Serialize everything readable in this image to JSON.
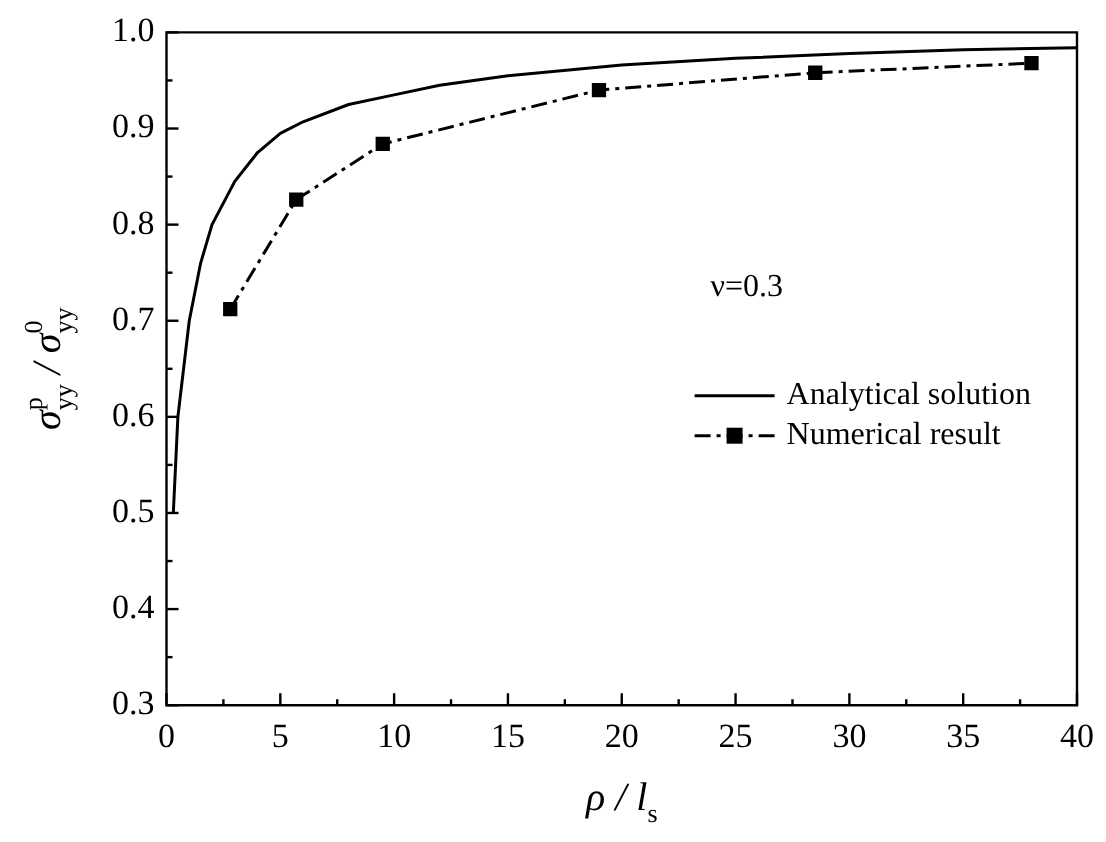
{
  "chart_data": {
    "type": "line",
    "xlabel": "ρ / l$_{s}$",
    "ylabel": "σ$^{p}$$_{yy}$ / σ$^{0}$$_{yy}$",
    "xlim": [
      0,
      40
    ],
    "xticks": [
      0,
      {
        "value": 2.5,
        "label": null
      },
      5,
      {
        "value": 7.5,
        "label": null
      },
      10,
      {
        "value": 12.5,
        "label": null
      },
      15,
      {
        "value": 17.5,
        "label": null
      },
      20,
      {
        "value": 22.5,
        "label": null
      },
      25,
      {
        "value": 27.5,
        "label": null
      },
      30,
      {
        "value": 32.5,
        "label": null
      },
      35,
      {
        "value": 37.5,
        "label": null
      },
      40
    ],
    "ylim": [
      0.3,
      1.0
    ],
    "yticks": [
      {
        "value": 0.3,
        "label": "0.3"
      },
      {
        "value": 0.35,
        "label": null
      },
      {
        "value": 0.4,
        "label": "0.4"
      },
      {
        "value": 0.45,
        "label": null
      },
      {
        "value": 0.5,
        "label": "0.5"
      },
      {
        "value": 0.55,
        "label": null
      },
      {
        "value": 0.6,
        "label": "0.6"
      },
      {
        "value": 0.65,
        "label": null
      },
      {
        "value": 0.7,
        "label": "0.7"
      },
      {
        "value": 0.75,
        "label": null
      },
      {
        "value": 0.8,
        "label": "0.8"
      },
      {
        "value": 0.85,
        "label": null
      },
      {
        "value": 0.9,
        "label": "0.9"
      },
      {
        "value": 0.95,
        "label": null
      },
      {
        "value": 1.0,
        "label": "1.0"
      }
    ],
    "grid": false,
    "legend": "right",
    "annotations": [
      "ν=0.3"
    ],
    "series": [
      {
        "name": "Analytical solution",
        "color": "#000000",
        "marker": "none",
        "line_style": "solid",
        "x": [
          0.3,
          0.5,
          1,
          1.5,
          2,
          3,
          4,
          5,
          6,
          8,
          10,
          12,
          15,
          20,
          25,
          30,
          35,
          40
        ],
        "values": [
          0.5,
          0.6,
          0.7,
          0.76,
          0.8,
          0.845,
          0.875,
          0.895,
          0.907,
          0.925,
          0.935,
          0.945,
          0.955,
          0.966,
          0.973,
          0.978,
          0.982,
          0.984
        ]
      },
      {
        "name": "Numerical result",
        "color": "#000000",
        "marker": "square",
        "line_style": "dashed",
        "x": [
          2.8,
          5.7,
          9.5,
          19,
          28.5,
          38
        ],
        "values": [
          0.712,
          0.826,
          0.884,
          0.94,
          0.958,
          0.968
        ]
      }
    ]
  }
}
